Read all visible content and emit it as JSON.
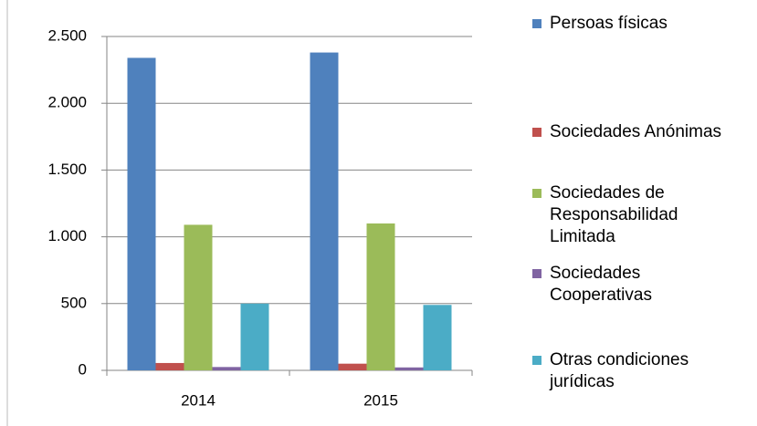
{
  "chart_data": {
    "type": "bar",
    "categories": [
      "2014",
      "2015"
    ],
    "series": [
      {
        "name": "Persoas físicas",
        "color": "#4f81bd",
        "values": [
          2340,
          2380
        ]
      },
      {
        "name": "Sociedades Anónimas",
        "color": "#c0504d",
        "values": [
          55,
          50
        ]
      },
      {
        "name": "Sociedades de Responsabilidad Limitada",
        "color": "#9bbb59",
        "values": [
          1090,
          1100
        ]
      },
      {
        "name": "Sociedades Cooperativas",
        "color": "#8064a2",
        "values": [
          25,
          22
        ]
      },
      {
        "name": "Otras condiciones jurídicas",
        "color": "#4bacc6",
        "values": [
          500,
          490
        ]
      }
    ],
    "ylim": [
      0,
      2500
    ],
    "yticks": [
      0,
      500,
      {
        "value": 1000,
        "label": "1.000"
      },
      {
        "value": 1500,
        "label": "1.500"
      },
      {
        "value": 2000,
        "label": "2.000"
      },
      {
        "value": 2500,
        "label": "2.500"
      }
    ],
    "grid": true
  }
}
